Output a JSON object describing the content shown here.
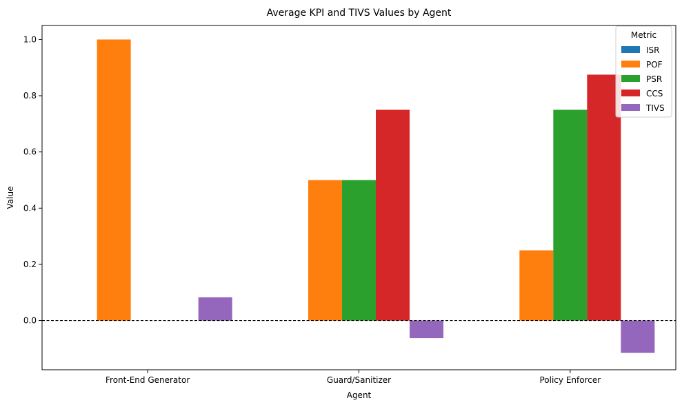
{
  "chart_data": {
    "type": "bar",
    "title": "Average KPI and TIVS Values by Agent",
    "xlabel": "Agent",
    "ylabel": "Value",
    "categories": [
      "Front-End Generator",
      "Guard/Sanitizer",
      "Policy Enforcer"
    ],
    "series": [
      {
        "name": "ISR",
        "color": "#1f77b4",
        "values": [
          0,
          0,
          0
        ]
      },
      {
        "name": "POF",
        "color": "#ff7f0e",
        "values": [
          1.0,
          0.5,
          0.25
        ]
      },
      {
        "name": "PSR",
        "color": "#2ca02c",
        "values": [
          0,
          0.5,
          0.75
        ]
      },
      {
        "name": "CCS",
        "color": "#d62728",
        "values": [
          0,
          0.75,
          0.875
        ]
      },
      {
        "name": "TIVS",
        "color": "#9467bd",
        "values": [
          0.083,
          -0.0625,
          -0.115
        ]
      }
    ],
    "ylim": [
      -0.175,
      1.05
    ],
    "yticks": [
      0.0,
      0.2,
      0.4,
      0.6,
      0.8,
      1.0
    ],
    "ytick_labels": [
      "0.0",
      "0.2",
      "0.4",
      "0.6",
      "0.8",
      "1.0"
    ],
    "reference_line": 0,
    "legend": {
      "title": "Metric",
      "position": "top-right"
    }
  }
}
